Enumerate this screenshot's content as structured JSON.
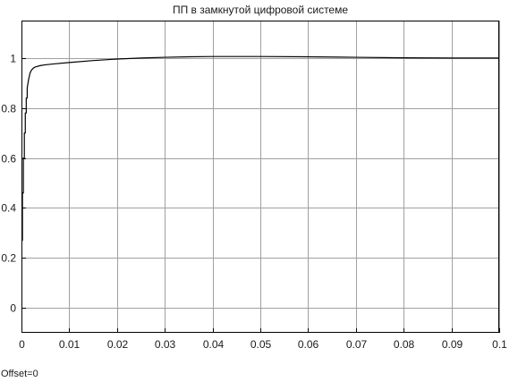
{
  "chart_data": {
    "type": "line",
    "title": "ПП в замкнутой цифровой системе",
    "xlabel": "",
    "ylabel": "",
    "xlim": [
      0,
      0.1
    ],
    "ylim": [
      -0.1,
      1.15
    ],
    "x_ticks": [
      0,
      0.01,
      0.02,
      0.03,
      0.04,
      0.05,
      0.06,
      0.07,
      0.08,
      0.09,
      0.1
    ],
    "x_tick_labels": [
      "0",
      "0.01",
      "0.02",
      "0.03",
      "0.04",
      "0.05",
      "0.06",
      "0.07",
      "0.08",
      "0.09",
      "0.1"
    ],
    "y_ticks": [
      0,
      0.2,
      0.4,
      0.6,
      0.8,
      1
    ],
    "y_tick_labels": [
      "0",
      "0.2",
      "0.4",
      "0.6",
      "0.8",
      "1"
    ],
    "grid": true,
    "line_color": "#000000",
    "grid_color": "#a0a0a0",
    "series": [
      {
        "x": [
          0,
          0.0002,
          0.0002,
          0.0004,
          0.0004,
          0.0006,
          0.0006,
          0.0008,
          0.0008,
          0.001,
          0.001,
          0.0012,
          0.0012,
          0.0015,
          0.0018,
          0.0021,
          0.0025,
          0.003,
          0.004,
          0.005,
          0.007,
          0.01,
          0.015,
          0.02,
          0.025,
          0.03,
          0.035,
          0.04,
          0.05,
          0.06,
          0.07,
          0.08,
          0.09,
          0.1
        ],
        "y": [
          0.27,
          0.27,
          0.46,
          0.46,
          0.6,
          0.6,
          0.7,
          0.7,
          0.78,
          0.78,
          0.84,
          0.84,
          0.88,
          0.915,
          0.94,
          0.952,
          0.96,
          0.965,
          0.97,
          0.973,
          0.977,
          0.982,
          0.99,
          0.996,
          1.0,
          1.003,
          1.005,
          1.006,
          1.006,
          1.005,
          1.003,
          1.001,
          1.0,
          1.0
        ]
      }
    ],
    "footer": "Offset=0"
  }
}
